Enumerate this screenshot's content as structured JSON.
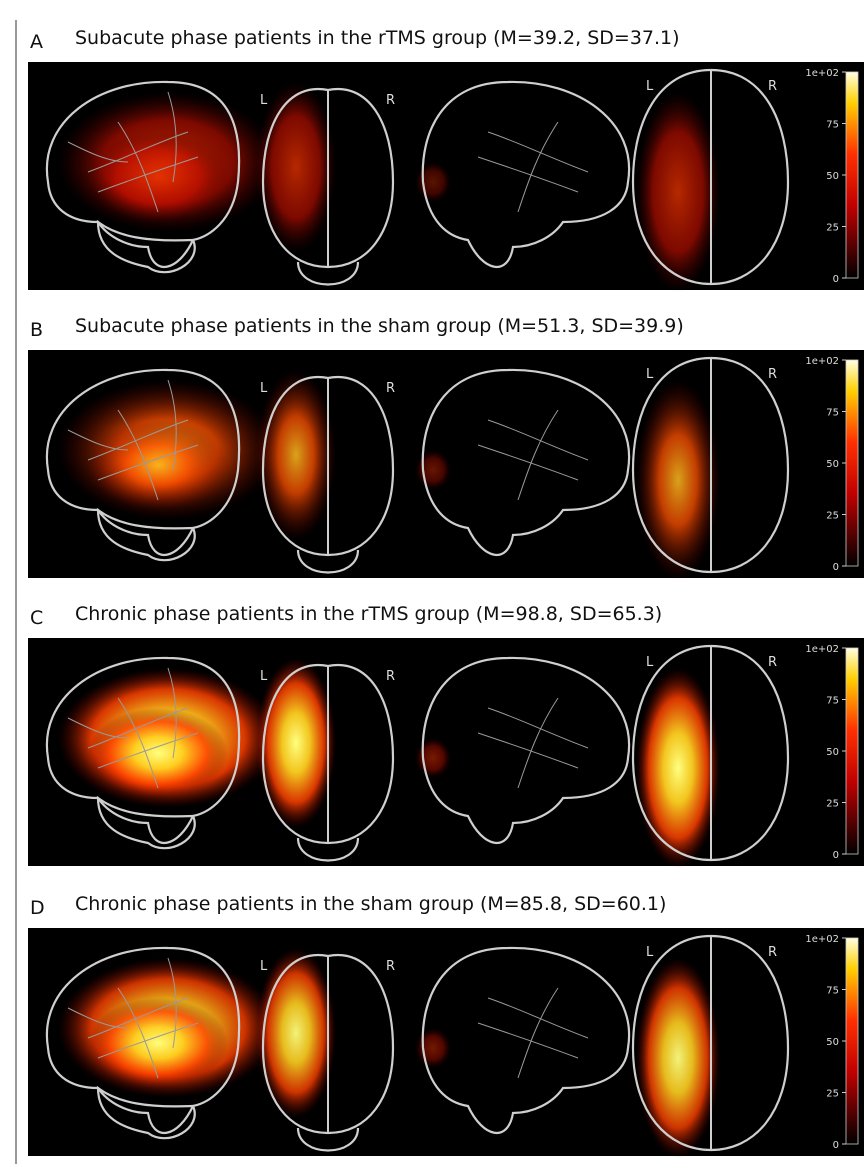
{
  "panels": [
    {
      "letter": "A",
      "title": "Subacute phase patients in the rTMS group (M=39.2, SD=37.1)",
      "labels": [
        "L",
        "R",
        "L",
        "R"
      ],
      "colorbar_ticks": [
        {
          "value": 100,
          "label": "1e+02"
        },
        75,
        50,
        25,
        0
      ]
    },
    {
      "letter": "B",
      "title": "Subacute phase patients in the sham group (M=51.3, SD=39.9)",
      "labels": [
        "L",
        "R",
        "L",
        "R"
      ],
      "colorbar_ticks": [
        {
          "value": 100,
          "label": "1e+02"
        },
        75,
        50,
        25,
        0
      ]
    },
    {
      "letter": "C",
      "title": "Chronic phase patients in the rTMS group (M=98.8, SD=65.3)",
      "labels": [
        "L",
        "R",
        "L",
        "R"
      ],
      "colorbar_ticks": [
        {
          "value": 100,
          "label": "1e+02"
        },
        75,
        50,
        25,
        0
      ]
    },
    {
      "letter": "D",
      "title": "Chronic phase patients in the sham group (M=85.8, SD=60.1)",
      "labels": [
        "L",
        "R",
        "L",
        "R"
      ],
      "colorbar_ticks": [
        {
          "value": 100,
          "label": "1e+02"
        },
        75,
        50,
        25,
        0
      ]
    }
  ]
}
